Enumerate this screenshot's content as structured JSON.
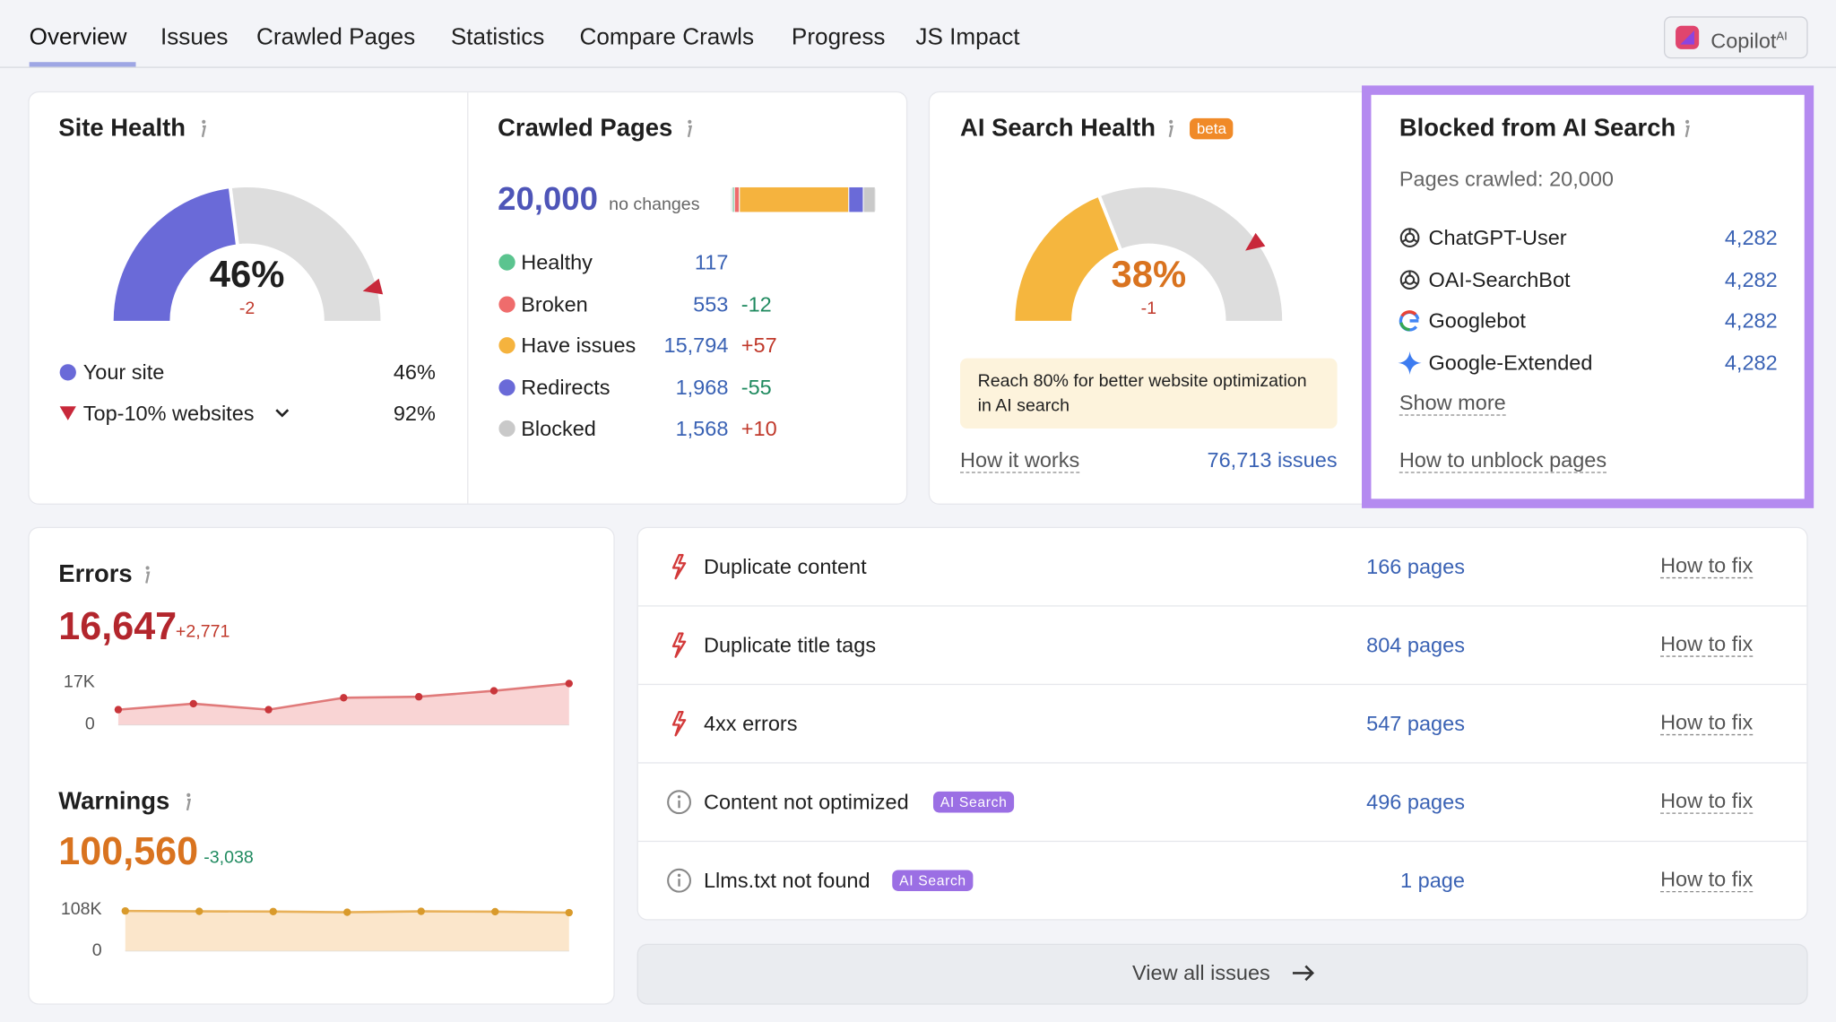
{
  "tabs": [
    "Overview",
    "Issues",
    "Crawled Pages",
    "Statistics",
    "Compare Crawls",
    "Progress",
    "JS Impact"
  ],
  "copilot": {
    "label": "Copilot",
    "sup": "AI"
  },
  "site_health": {
    "title": "Site Health",
    "score": {
      "value": 46,
      "label": "46%"
    },
    "change": "-2",
    "your_site": "Your site",
    "top10": {
      "name": "Top-10% websites",
      "value": 92,
      "label": "92%"
    }
  },
  "crawled_pages": {
    "title": "Crawled Pages",
    "total": "20,000",
    "total_note": "no changes",
    "rows": [
      {
        "name": "Healthy",
        "color": "#5bc48f",
        "count": 117
      },
      {
        "name": "Broken",
        "color": "#ef6c6c",
        "count": 553,
        "change": "-12"
      },
      {
        "name": "Have issues",
        "color": "#f5b33e",
        "count": {
          "value": 15794,
          "label": "15,794"
        },
        "change": "+57"
      },
      {
        "name": "Redirects",
        "color": "#6a6ad8",
        "count": {
          "value": 1968,
          "label": "1,968"
        },
        "change": "-55"
      },
      {
        "name": "Blocked",
        "color": "#c9c9c9",
        "count": {
          "value": 1568,
          "label": "1,568"
        },
        "change": "+10"
      }
    ]
  },
  "ai_search_health": {
    "title": "AI Search Health",
    "badge": "beta",
    "score": {
      "value": 38,
      "label": "38%"
    },
    "change": "-1",
    "target": 80,
    "note": "Reach 80% for better website optimization in AI search",
    "link": "How it works",
    "issues": "76,713 issues"
  },
  "blocked": {
    "title": "Blocked from AI Search",
    "pages_crawled": "Pages crawled: 20,000",
    "bots": [
      {
        "name": "ChatGPT-User",
        "count": "4,282"
      },
      {
        "name": "OAI-SearchBot",
        "count": "4,282"
      },
      {
        "name": "Googlebot",
        "count": "4,282"
      },
      {
        "name": "Google-Extended",
        "count": "4,282"
      }
    ],
    "show_more": "Show more",
    "link": "How to unblock pages"
  },
  "errors": {
    "title": "Errors",
    "total": "16,647",
    "change": "+2,771",
    "chart": {
      "ylim": [
        0,
        17000
      ],
      "yticks": [
        {
          "value": 17000,
          "label": "17K"
        },
        0
      ],
      "values": [
        6100,
        8500,
        6100,
        10900,
        11300,
        13700,
        16647
      ]
    }
  },
  "warnings": {
    "title": "Warnings",
    "total": "100,560",
    "change": "-3,038",
    "chart": {
      "ylim": [
        0,
        108000
      ],
      "yticks": [
        {
          "value": 108000,
          "label": "108K"
        },
        0
      ],
      "values": [
        105000,
        104000,
        103500,
        101500,
        104000,
        103000,
        100560
      ]
    }
  },
  "issues": [
    {
      "name": "Duplicate content",
      "pages": "166 pages",
      "fix": "How to fix"
    },
    {
      "name": "Duplicate title tags",
      "pages": "804 pages",
      "fix": "How to fix"
    },
    {
      "name": "4xx errors",
      "pages": "547 pages",
      "fix": "How to fix"
    },
    {
      "name": "Content not optimized",
      "tag": "AI Search",
      "pages": "496 pages",
      "fix": "How to fix"
    },
    {
      "name": "Llms.txt not found",
      "tag": "AI Search",
      "pages": "1 page",
      "fix": "How to fix"
    }
  ],
  "view_all": "View all issues"
}
